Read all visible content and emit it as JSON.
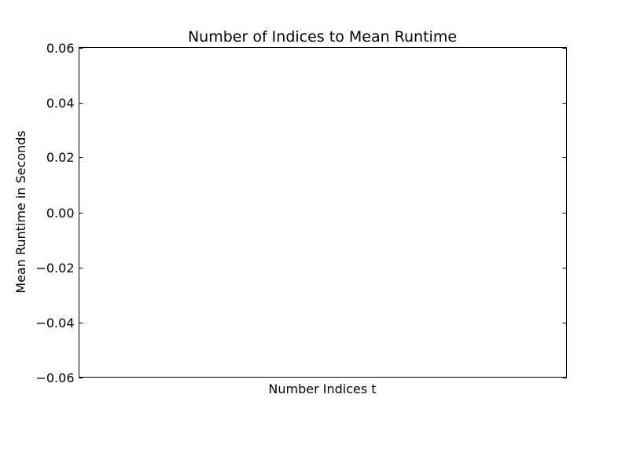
{
  "chart_data": {
    "type": "line",
    "title": "Number of Indices to Mean Runtime",
    "xlabel": "Number Indices t",
    "ylabel": "Mean Runtime in Seconds",
    "ylim": [
      -0.06,
      0.06
    ],
    "yticks": [
      0.06,
      0.04,
      0.02,
      0.0,
      -0.02,
      -0.04,
      -0.06
    ],
    "ytick_labels": [
      "0.06",
      "0.04",
      "0.02",
      "0.00",
      "−0.02",
      "−0.04",
      "−0.06"
    ],
    "xticks": [],
    "series": [],
    "grid": false
  }
}
